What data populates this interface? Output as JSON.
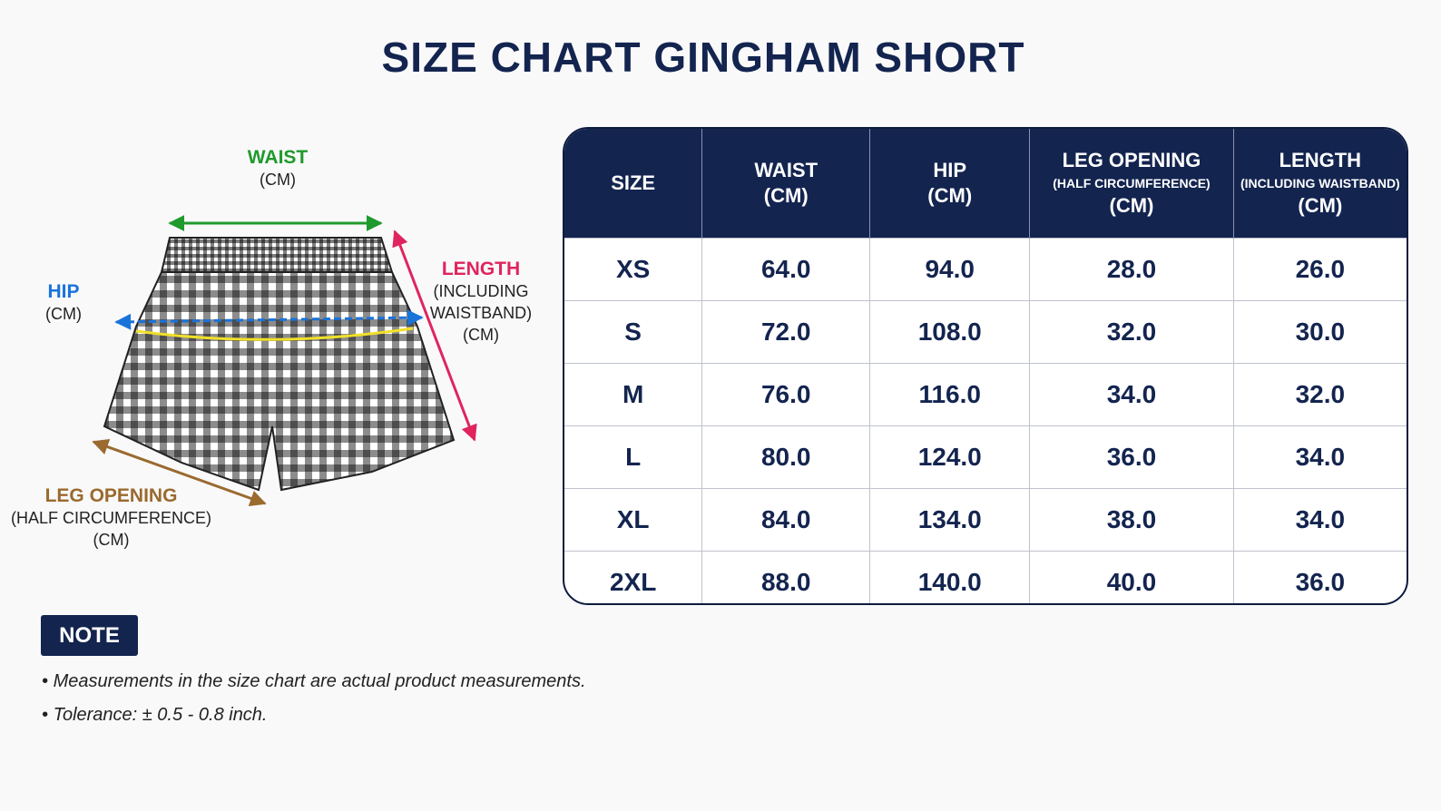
{
  "title": "SIZE CHART GINGHAM SHORT",
  "diagram": {
    "waist": {
      "name": "WAIST",
      "unit": "(CM)"
    },
    "hip": {
      "name": "HIP",
      "unit": "(CM)"
    },
    "length": {
      "name": "LENGTH",
      "detail": [
        "(INCLUDING",
        "WAISTBAND)"
      ],
      "unit": "(CM)"
    },
    "leg_opening": {
      "name": "LEG OPENING",
      "detail": "(HALF CIRCUMFERENCE)",
      "unit": "(CM)"
    }
  },
  "table": {
    "header": [
      [
        "SIZE"
      ],
      [
        "WAIST",
        "(CM)"
      ],
      [
        "HIP",
        "(CM)"
      ],
      [
        "LEG OPENING",
        "(HALF CIRCUMFERENCE)",
        "(CM)"
      ],
      [
        "LENGTH",
        "(INCLUDING WAISTBAND)",
        "(CM)"
      ]
    ],
    "rows": [
      [
        "XS",
        "64.0",
        "94.0",
        "28.0",
        "26.0"
      ],
      [
        "S",
        "72.0",
        "108.0",
        "32.0",
        "30.0"
      ],
      [
        "M",
        "76.0",
        "116.0",
        "34.0",
        "32.0"
      ],
      [
        "L",
        "80.0",
        "124.0",
        "36.0",
        "34.0"
      ],
      [
        "XL",
        "84.0",
        "134.0",
        "38.0",
        "34.0"
      ],
      [
        "2XL",
        "88.0",
        "140.0",
        "40.0",
        "36.0"
      ]
    ]
  },
  "note": {
    "label": "NOTE",
    "items": [
      "Measurements in the size chart are actual product measurements.",
      "Tolerance: ± 0.5 - 0.8 inch."
    ]
  }
}
